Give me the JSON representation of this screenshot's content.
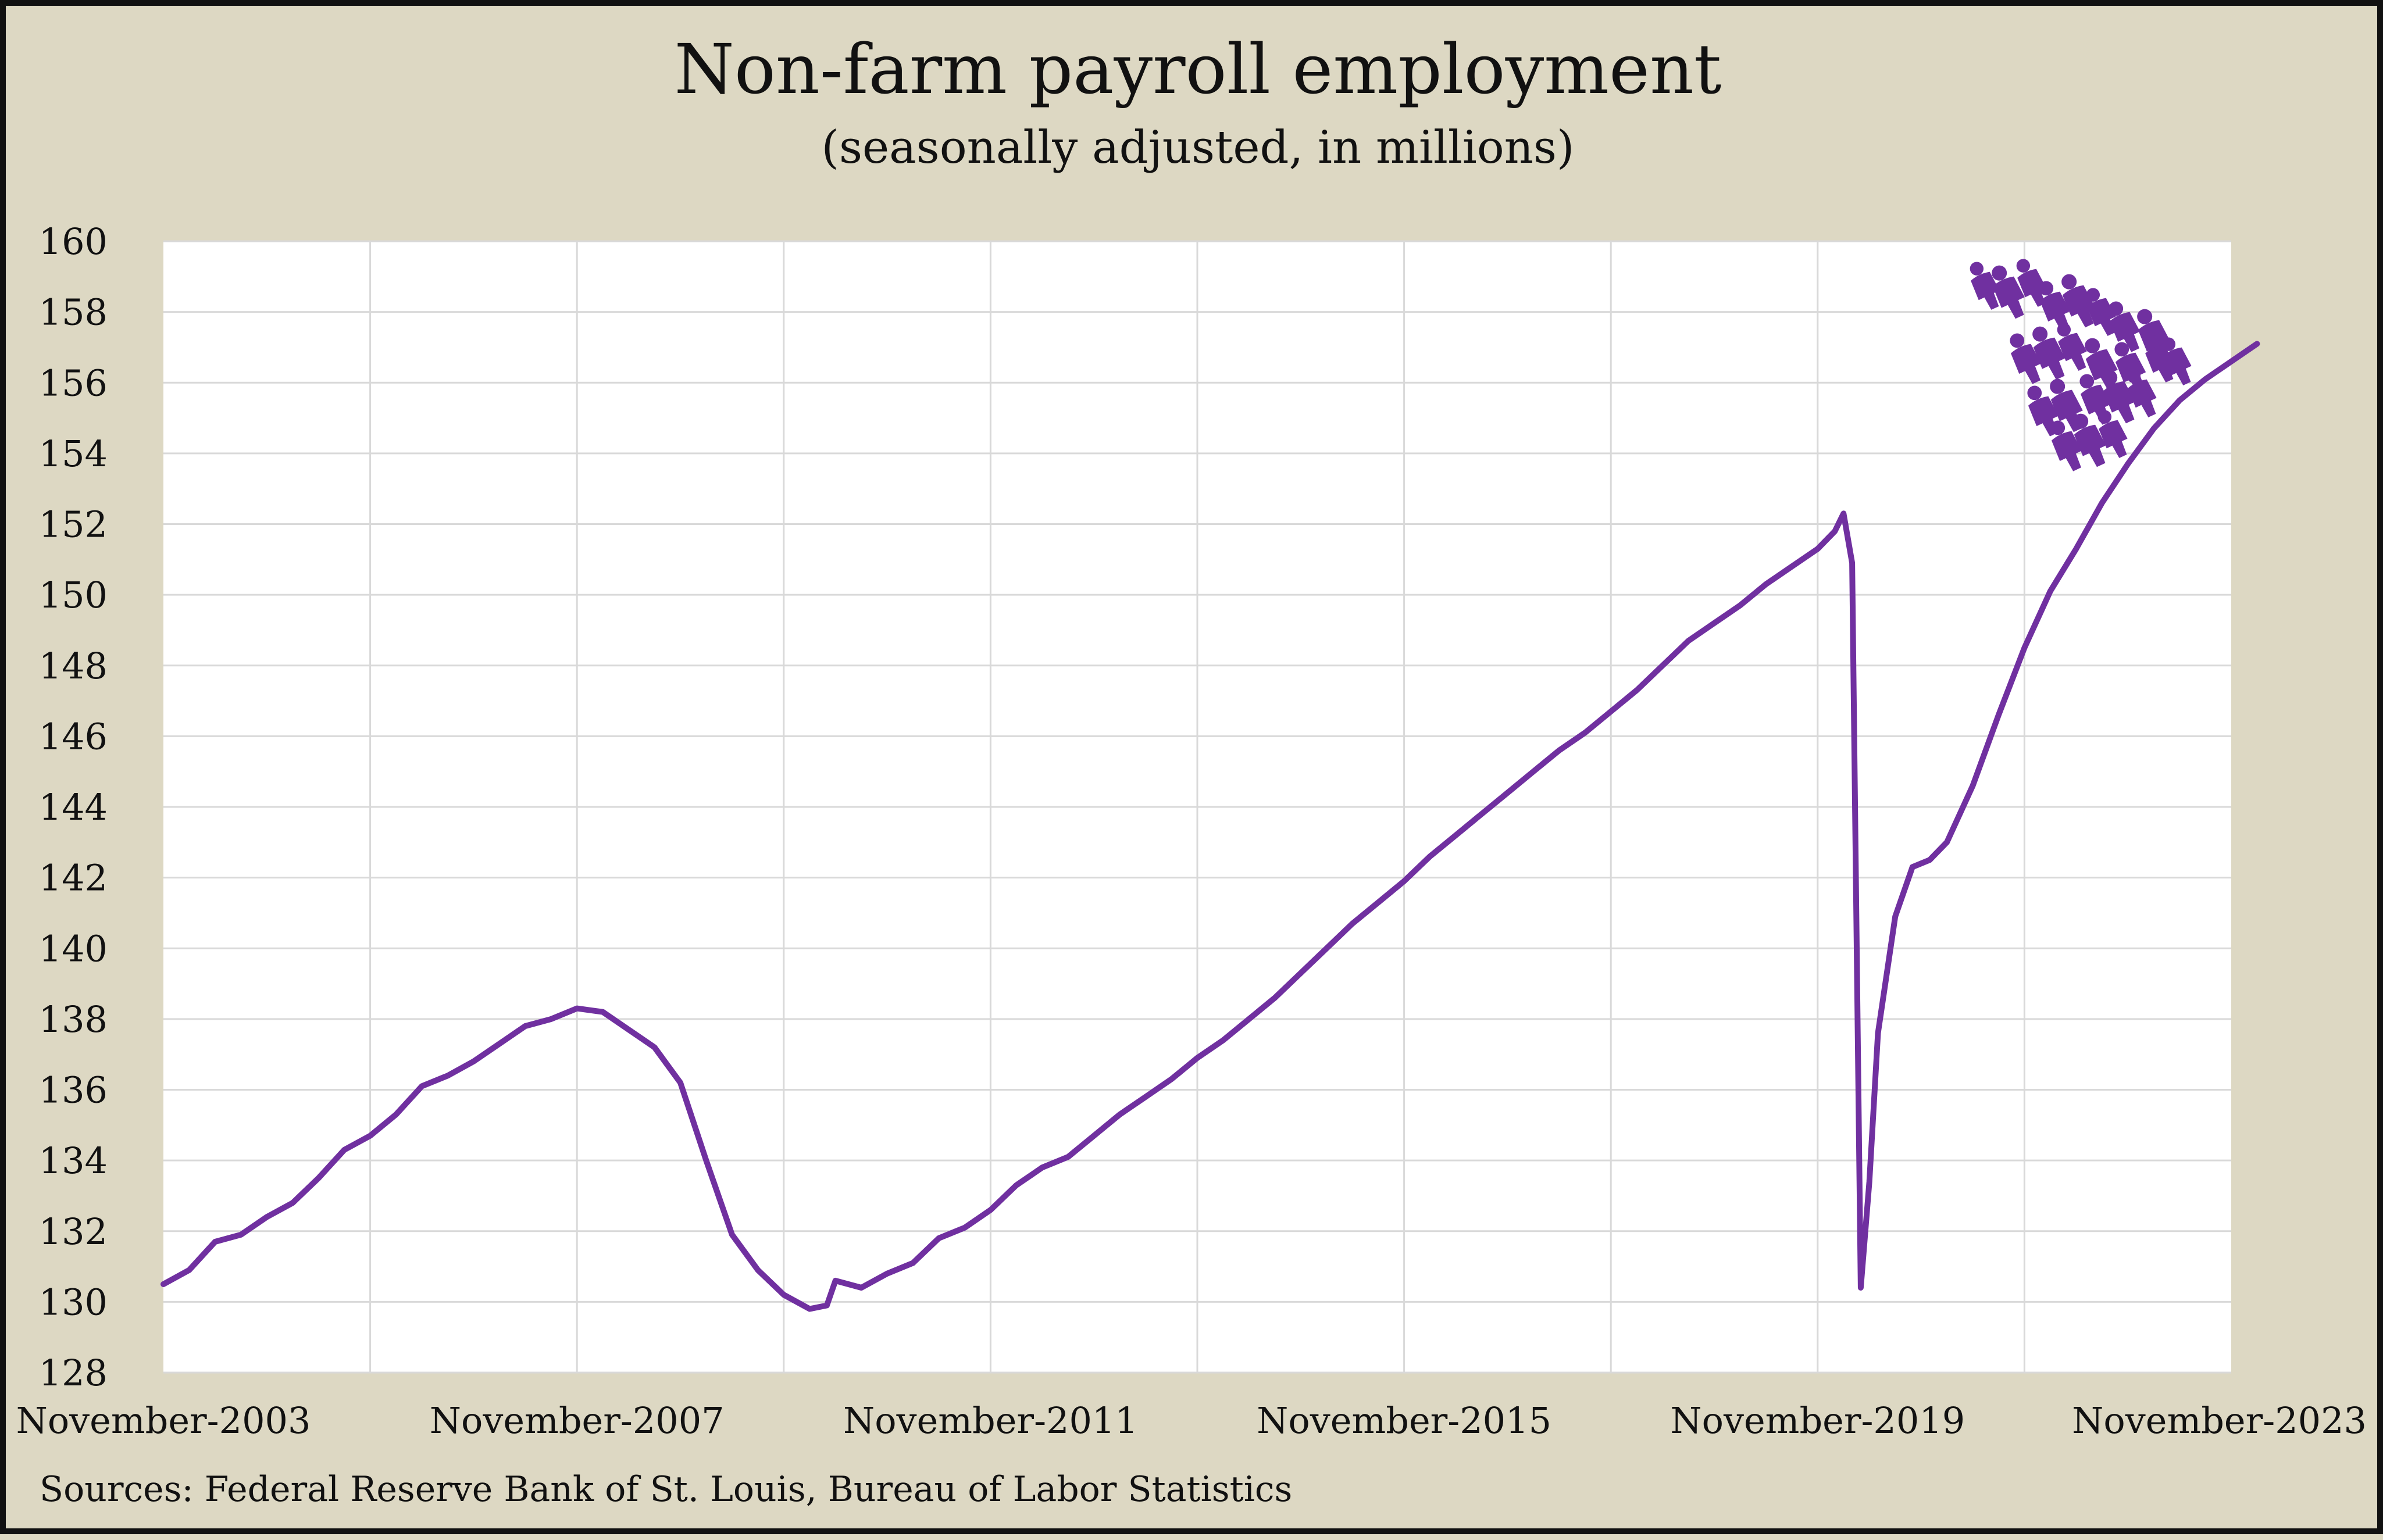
{
  "chart_data": {
    "type": "line",
    "title": "Non-farm payroll employment",
    "subtitle": "(seasonally adjusted, in millions)",
    "source": "Sources: Federal Reserve Bank of St. Louis, Bureau of Labor Statistics",
    "xlabel": "",
    "ylabel": "",
    "ylim": [
      128,
      160
    ],
    "yticks": [
      128,
      130,
      132,
      134,
      136,
      138,
      140,
      142,
      144,
      146,
      148,
      150,
      152,
      154,
      156,
      158,
      160
    ],
    "x_tick_labels": [
      {
        "label": "November-2003",
        "date": "2003-11"
      },
      {
        "label": "November-2007",
        "date": "2007-11"
      },
      {
        "label": "November-2011",
        "date": "2011-11"
      },
      {
        "label": "November-2015",
        "date": "2015-11"
      },
      {
        "label": "November-2019",
        "date": "2019-11"
      },
      {
        "label": "November-2023",
        "date": "2023-11"
      }
    ],
    "grid": true,
    "line_color": "#7030a0",
    "icon_color": "#7030a0",
    "decoration_icon": "people-group-icon",
    "series": [
      {
        "points": [
          [
            "2003-11",
            130.5
          ],
          [
            "2004-02",
            130.9
          ],
          [
            "2004-05",
            131.7
          ],
          [
            "2004-08",
            131.9
          ],
          [
            "2004-11",
            132.4
          ],
          [
            "2005-02",
            132.8
          ],
          [
            "2005-05",
            133.5
          ],
          [
            "2005-08",
            134.3
          ],
          [
            "2005-11",
            134.7
          ],
          [
            "2006-02",
            135.3
          ],
          [
            "2006-05",
            136.1
          ],
          [
            "2006-08",
            136.4
          ],
          [
            "2006-11",
            136.8
          ],
          [
            "2007-02",
            137.3
          ],
          [
            "2007-05",
            137.8
          ],
          [
            "2007-08",
            138.0
          ],
          [
            "2007-11",
            138.3
          ],
          [
            "2008-02",
            138.2
          ],
          [
            "2008-05",
            137.7
          ],
          [
            "2008-08",
            137.2
          ],
          [
            "2008-11",
            136.2
          ],
          [
            "2009-02",
            134.0
          ],
          [
            "2009-05",
            131.9
          ],
          [
            "2009-08",
            130.9
          ],
          [
            "2009-11",
            130.2
          ],
          [
            "2010-02",
            129.8
          ],
          [
            "2010-04",
            129.9
          ],
          [
            "2010-05",
            130.6
          ],
          [
            "2010-08",
            130.4
          ],
          [
            "2010-11",
            130.8
          ],
          [
            "2011-02",
            131.1
          ],
          [
            "2011-05",
            131.8
          ],
          [
            "2011-08",
            132.1
          ],
          [
            "2011-11",
            132.6
          ],
          [
            "2012-02",
            133.3
          ],
          [
            "2012-05",
            133.8
          ],
          [
            "2012-08",
            134.1
          ],
          [
            "2012-11",
            134.7
          ],
          [
            "2013-02",
            135.3
          ],
          [
            "2013-05",
            135.8
          ],
          [
            "2013-08",
            136.3
          ],
          [
            "2013-11",
            136.9
          ],
          [
            "2014-02",
            137.4
          ],
          [
            "2014-05",
            138.0
          ],
          [
            "2014-08",
            138.6
          ],
          [
            "2014-11",
            139.3
          ],
          [
            "2015-02",
            140.0
          ],
          [
            "2015-05",
            140.7
          ],
          [
            "2015-08",
            141.3
          ],
          [
            "2015-11",
            141.9
          ],
          [
            "2016-02",
            142.6
          ],
          [
            "2016-05",
            143.2
          ],
          [
            "2016-08",
            143.8
          ],
          [
            "2016-11",
            144.4
          ],
          [
            "2017-02",
            145.0
          ],
          [
            "2017-05",
            145.6
          ],
          [
            "2017-08",
            146.1
          ],
          [
            "2017-11",
            146.7
          ],
          [
            "2018-02",
            147.3
          ],
          [
            "2018-05",
            148.0
          ],
          [
            "2018-08",
            148.7
          ],
          [
            "2018-11",
            149.2
          ],
          [
            "2019-02",
            149.7
          ],
          [
            "2019-05",
            150.3
          ],
          [
            "2019-08",
            150.8
          ],
          [
            "2019-11",
            151.3
          ],
          [
            "2020-01",
            151.8
          ],
          [
            "2020-02",
            152.3
          ],
          [
            "2020-03",
            150.9
          ],
          [
            "2020-04",
            130.4
          ],
          [
            "2020-05",
            133.4
          ],
          [
            "2020-06",
            137.6
          ],
          [
            "2020-08",
            140.9
          ],
          [
            "2020-10",
            142.3
          ],
          [
            "2020-12",
            142.5
          ],
          [
            "2021-02",
            143.0
          ],
          [
            "2021-05",
            144.6
          ],
          [
            "2021-08",
            146.6
          ],
          [
            "2021-11",
            148.5
          ],
          [
            "2022-02",
            150.1
          ],
          [
            "2022-05",
            151.3
          ],
          [
            "2022-08",
            152.6
          ],
          [
            "2022-11",
            153.7
          ],
          [
            "2023-02",
            154.7
          ],
          [
            "2023-05",
            155.5
          ],
          [
            "2023-08",
            156.1
          ],
          [
            "2023-11",
            156.6
          ],
          [
            "2024-02",
            157.1
          ]
        ]
      }
    ]
  }
}
